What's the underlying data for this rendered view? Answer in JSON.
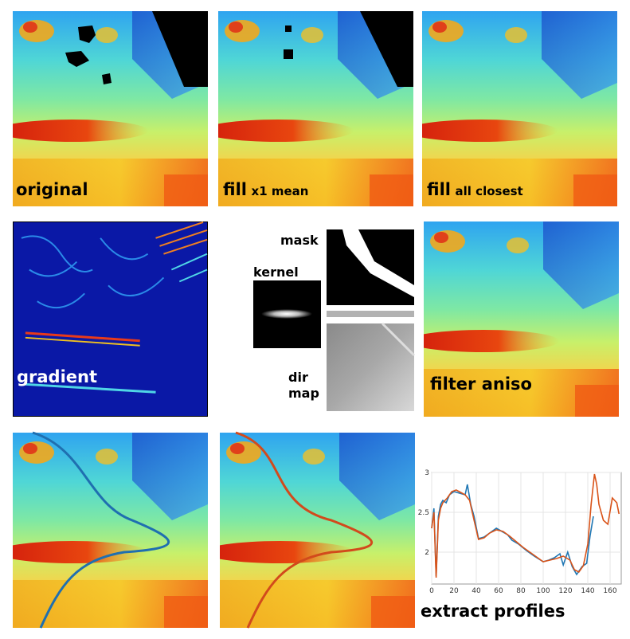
{
  "panels": {
    "original": {
      "caption": "original"
    },
    "fill_mean": {
      "caption_main": "fill",
      "caption_sub": "x1 mean"
    },
    "fill_closest": {
      "caption_main": "fill",
      "caption_sub": "all closest"
    },
    "gradient": {
      "caption": "gradient"
    },
    "mask_kernel": {
      "mask_label": "mask",
      "kernel_label": "kernel",
      "dir_label": "dir",
      "map_label": "map"
    },
    "filter_aniso": {
      "caption": "filter aniso"
    },
    "profile_blue": {
      "line_color": "#1f6fb0"
    },
    "profile_orange": {
      "line_color": "#d24a1c"
    },
    "extract_profiles": {
      "caption": "extract profiles"
    }
  },
  "chart_data": {
    "type": "line",
    "xlim": [
      0,
      170
    ],
    "ylim": [
      1.6,
      3.0
    ],
    "xticks": [
      "0",
      "20",
      "40",
      "60",
      "80",
      "100",
      "120",
      "140",
      "160"
    ],
    "yticks": [
      "2",
      "2.5",
      "3"
    ],
    "grid": true,
    "series": [
      {
        "color": "#1f77b4",
        "x": [
          0,
          2,
          4,
          6,
          8,
          10,
          13,
          16,
          20,
          25,
          30,
          32,
          35,
          38,
          42,
          47,
          52,
          58,
          63,
          68,
          72,
          78,
          85,
          92,
          100,
          105,
          110,
          115,
          118,
          122,
          126,
          130,
          135,
          139,
          142,
          145
        ],
        "y": [
          2.3,
          2.55,
          1.7,
          2.45,
          2.6,
          2.65,
          2.62,
          2.72,
          2.76,
          2.74,
          2.72,
          2.85,
          2.6,
          2.45,
          2.17,
          2.19,
          2.24,
          2.3,
          2.26,
          2.22,
          2.15,
          2.1,
          2.02,
          1.95,
          1.88,
          1.9,
          1.93,
          1.98,
          1.84,
          2.0,
          1.82,
          1.72,
          1.82,
          1.86,
          2.2,
          2.45
        ]
      },
      {
        "color": "#d95319",
        "x": [
          0,
          2,
          4,
          6,
          8,
          10,
          14,
          18,
          22,
          26,
          30,
          34,
          38,
          42,
          47,
          52,
          58,
          64,
          70,
          76,
          82,
          88,
          94,
          100,
          106,
          112,
          118,
          124,
          128,
          132,
          136,
          140,
          143,
          146,
          148,
          150,
          154,
          158,
          162,
          166,
          168
        ],
        "y": [
          2.3,
          2.5,
          1.68,
          2.4,
          2.55,
          2.62,
          2.68,
          2.76,
          2.78,
          2.75,
          2.72,
          2.65,
          2.4,
          2.16,
          2.18,
          2.24,
          2.28,
          2.26,
          2.2,
          2.13,
          2.06,
          2.0,
          1.94,
          1.88,
          1.9,
          1.92,
          1.95,
          1.9,
          1.78,
          1.75,
          1.83,
          2.1,
          2.6,
          2.98,
          2.85,
          2.6,
          2.4,
          2.35,
          2.68,
          2.62,
          2.48
        ]
      }
    ]
  }
}
